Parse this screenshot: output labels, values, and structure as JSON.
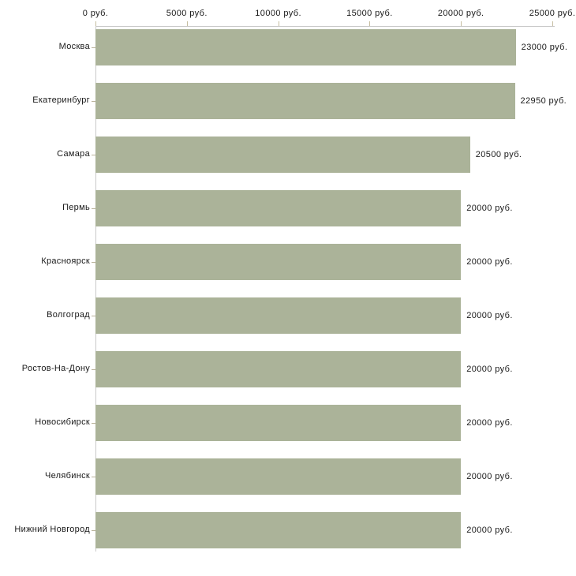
{
  "chart_data": {
    "type": "bar",
    "orientation": "horizontal",
    "title": "",
    "xlabel": "",
    "ylabel": "",
    "unit": "руб.",
    "xlim": [
      0,
      25000
    ],
    "grid": false,
    "legend_position": "none",
    "x_ticks": [
      {
        "value": 0,
        "label": "0 руб."
      },
      {
        "value": 5000,
        "label": "5000 руб."
      },
      {
        "value": 10000,
        "label": "10000 руб."
      },
      {
        "value": 15000,
        "label": "15000 руб."
      },
      {
        "value": 20000,
        "label": "20000 руб."
      },
      {
        "value": 25000,
        "label": "25000 руб."
      }
    ],
    "categories": [
      "Москва",
      "Екатеринбург",
      "Самара",
      "Пермь",
      "Красноярск",
      "Волгоград",
      "Ростов-На-Дону",
      "Новосибирск",
      "Челябинск",
      "Нижний Новгород"
    ],
    "values": [
      23000,
      22950,
      20500,
      20000,
      20000,
      20000,
      20000,
      20000,
      20000,
      20000
    ],
    "value_labels": [
      "23000 руб.",
      "22950 руб.",
      "20500 руб.",
      "20000 руб.",
      "20000 руб.",
      "20000 руб.",
      "20000 руб.",
      "20000 руб.",
      "20000 руб.",
      "20000 руб."
    ],
    "colors": {
      "bar": "#abb399",
      "axis_line": "#c9c9c9",
      "tick_mark": "#c5bda0",
      "text": "#1a1a1a",
      "background": "#ffffff"
    }
  }
}
